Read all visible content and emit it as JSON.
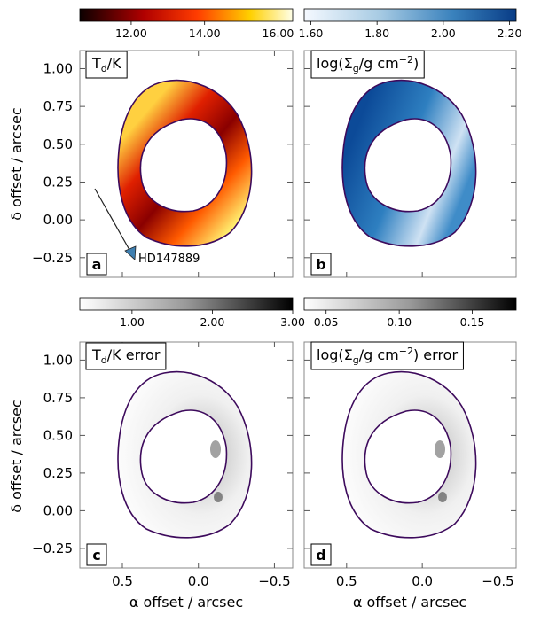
{
  "chart_data": [
    {
      "type": "heatmap",
      "panel": "a",
      "label": "T",
      "label_sub": "d",
      "label_rest": "/K",
      "colormap": "hot",
      "colorbar_ticks": [
        "12.00",
        "14.00",
        "16.00"
      ],
      "colorbar_range": [
        10.6,
        16.4
      ],
      "colorbar_tick_values": [
        12,
        14,
        16
      ],
      "annotation": "HD147889",
      "ylabel": "δ offset / arcsec",
      "xlim": [
        0.78,
        -0.62
      ],
      "ylim": [
        -0.38,
        1.12
      ]
    },
    {
      "type": "heatmap",
      "panel": "b",
      "label": "log(Σ",
      "label_sub": "g",
      "label_rest": "/g cm",
      "label_sup": "−2",
      "label_close": ")",
      "colormap": "Blues",
      "colorbar_ticks": [
        "1.60",
        "1.80",
        "2.00",
        "2.20"
      ],
      "colorbar_range": [
        1.58,
        2.22
      ],
      "colorbar_tick_values": [
        1.6,
        1.8,
        2.0,
        2.2
      ],
      "xlim": [
        0.78,
        -0.62
      ],
      "ylim": [
        -0.38,
        1.12
      ]
    },
    {
      "type": "heatmap",
      "panel": "c",
      "label": "T",
      "label_sub": "d",
      "label_rest": "/K error",
      "colormap": "Greys",
      "colorbar_ticks": [
        "1.00",
        "2.00",
        "3.00"
      ],
      "colorbar_range": [
        0.35,
        3.0
      ],
      "colorbar_tick_values": [
        1,
        2,
        3
      ],
      "ylabel": "δ offset / arcsec",
      "xlabel": "α offset / arcsec",
      "xlim": [
        0.78,
        -0.62
      ],
      "ylim": [
        -0.38,
        1.12
      ]
    },
    {
      "type": "heatmap",
      "panel": "d",
      "label": "log(Σ",
      "label_sub": "g",
      "label_rest": "/g cm",
      "label_sup": "−2",
      "label_close": ") error",
      "colormap": "Greys",
      "colorbar_ticks": [
        "0.05",
        "0.10",
        "0.15"
      ],
      "colorbar_range": [
        0.035,
        0.18
      ],
      "colorbar_tick_values": [
        0.05,
        0.1,
        0.15
      ],
      "xlabel": "α offset / arcsec",
      "xlim": [
        0.78,
        -0.62
      ],
      "ylim": [
        -0.38,
        1.12
      ]
    }
  ],
  "axes": {
    "y_ticks": [
      "1.00",
      "0.75",
      "0.50",
      "0.25",
      "0.00",
      "−0.25"
    ],
    "y_tick_values": [
      1.0,
      0.75,
      0.5,
      0.25,
      0.0,
      -0.25
    ],
    "x_ticks": [
      "0.5",
      "0.0",
      "−0.5"
    ],
    "x_tick_values": [
      0.5,
      0.0,
      -0.5
    ]
  }
}
